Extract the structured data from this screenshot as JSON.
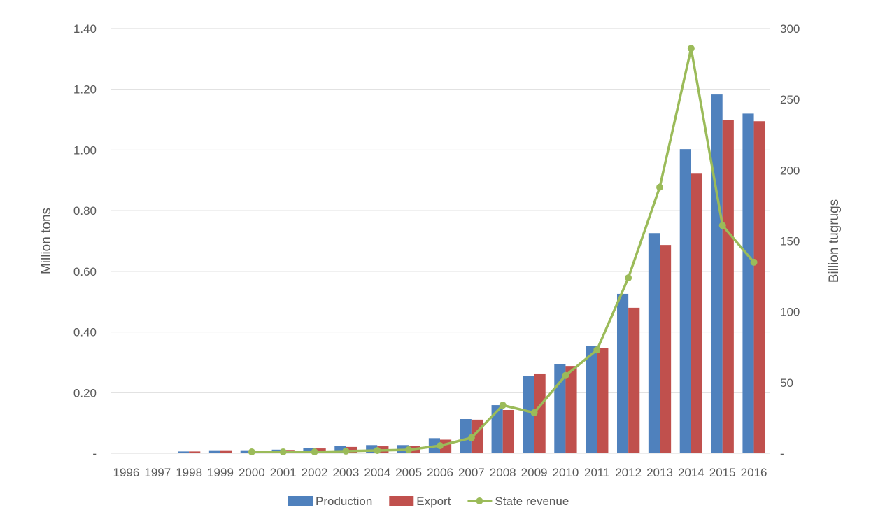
{
  "chart_data": {
    "type": "bar",
    "categories": [
      "1996",
      "1997",
      "1998",
      "1999",
      "2000",
      "2001",
      "2002",
      "2003",
      "2004",
      "2005",
      "2006",
      "2007",
      "2008",
      "2009",
      "2010",
      "2011",
      "2012",
      "2013",
      "2014",
      "2015",
      "2016"
    ],
    "series": [
      {
        "name": "Production",
        "type": "bar",
        "axis": "left",
        "color": "#4F81BD",
        "values": [
          0.002,
          0.002,
          0.006,
          0.01,
          0.01,
          0.012,
          0.018,
          0.024,
          0.027,
          0.027,
          0.05,
          0.113,
          0.159,
          0.256,
          0.295,
          0.353,
          0.526,
          0.726,
          1.003,
          1.183,
          1.12
        ]
      },
      {
        "name": "Export",
        "type": "bar",
        "axis": "left",
        "color": "#C0504D",
        "values": [
          0,
          0,
          0.006,
          0.01,
          0.008,
          0.011,
          0.016,
          0.021,
          0.023,
          0.024,
          0.045,
          0.111,
          0.143,
          0.263,
          0.288,
          0.348,
          0.48,
          0.687,
          0.922,
          1.1,
          1.095
        ]
      },
      {
        "name": "State revenue",
        "type": "line",
        "axis": "right",
        "color": "#9BBB59",
        "values": [
          null,
          null,
          null,
          null,
          1,
          1,
          1,
          1.5,
          2,
          2.5,
          5.4,
          11,
          34,
          28.7,
          55,
          73,
          124,
          188,
          286,
          161,
          135
        ]
      }
    ],
    "ylabel": "Million tons",
    "y2label": "Billion tugrugs",
    "ylim": [
      0,
      1.4
    ],
    "y2lim": [
      0,
      300
    ],
    "yticks": [
      "-",
      "0.20",
      "0.40",
      "0.60",
      "0.80",
      "1.00",
      "1.20",
      "1.40"
    ],
    "y2ticks": [
      "-",
      "50",
      "100",
      "150",
      "200",
      "250",
      "300"
    ],
    "grid": true,
    "legend": "bottom"
  }
}
